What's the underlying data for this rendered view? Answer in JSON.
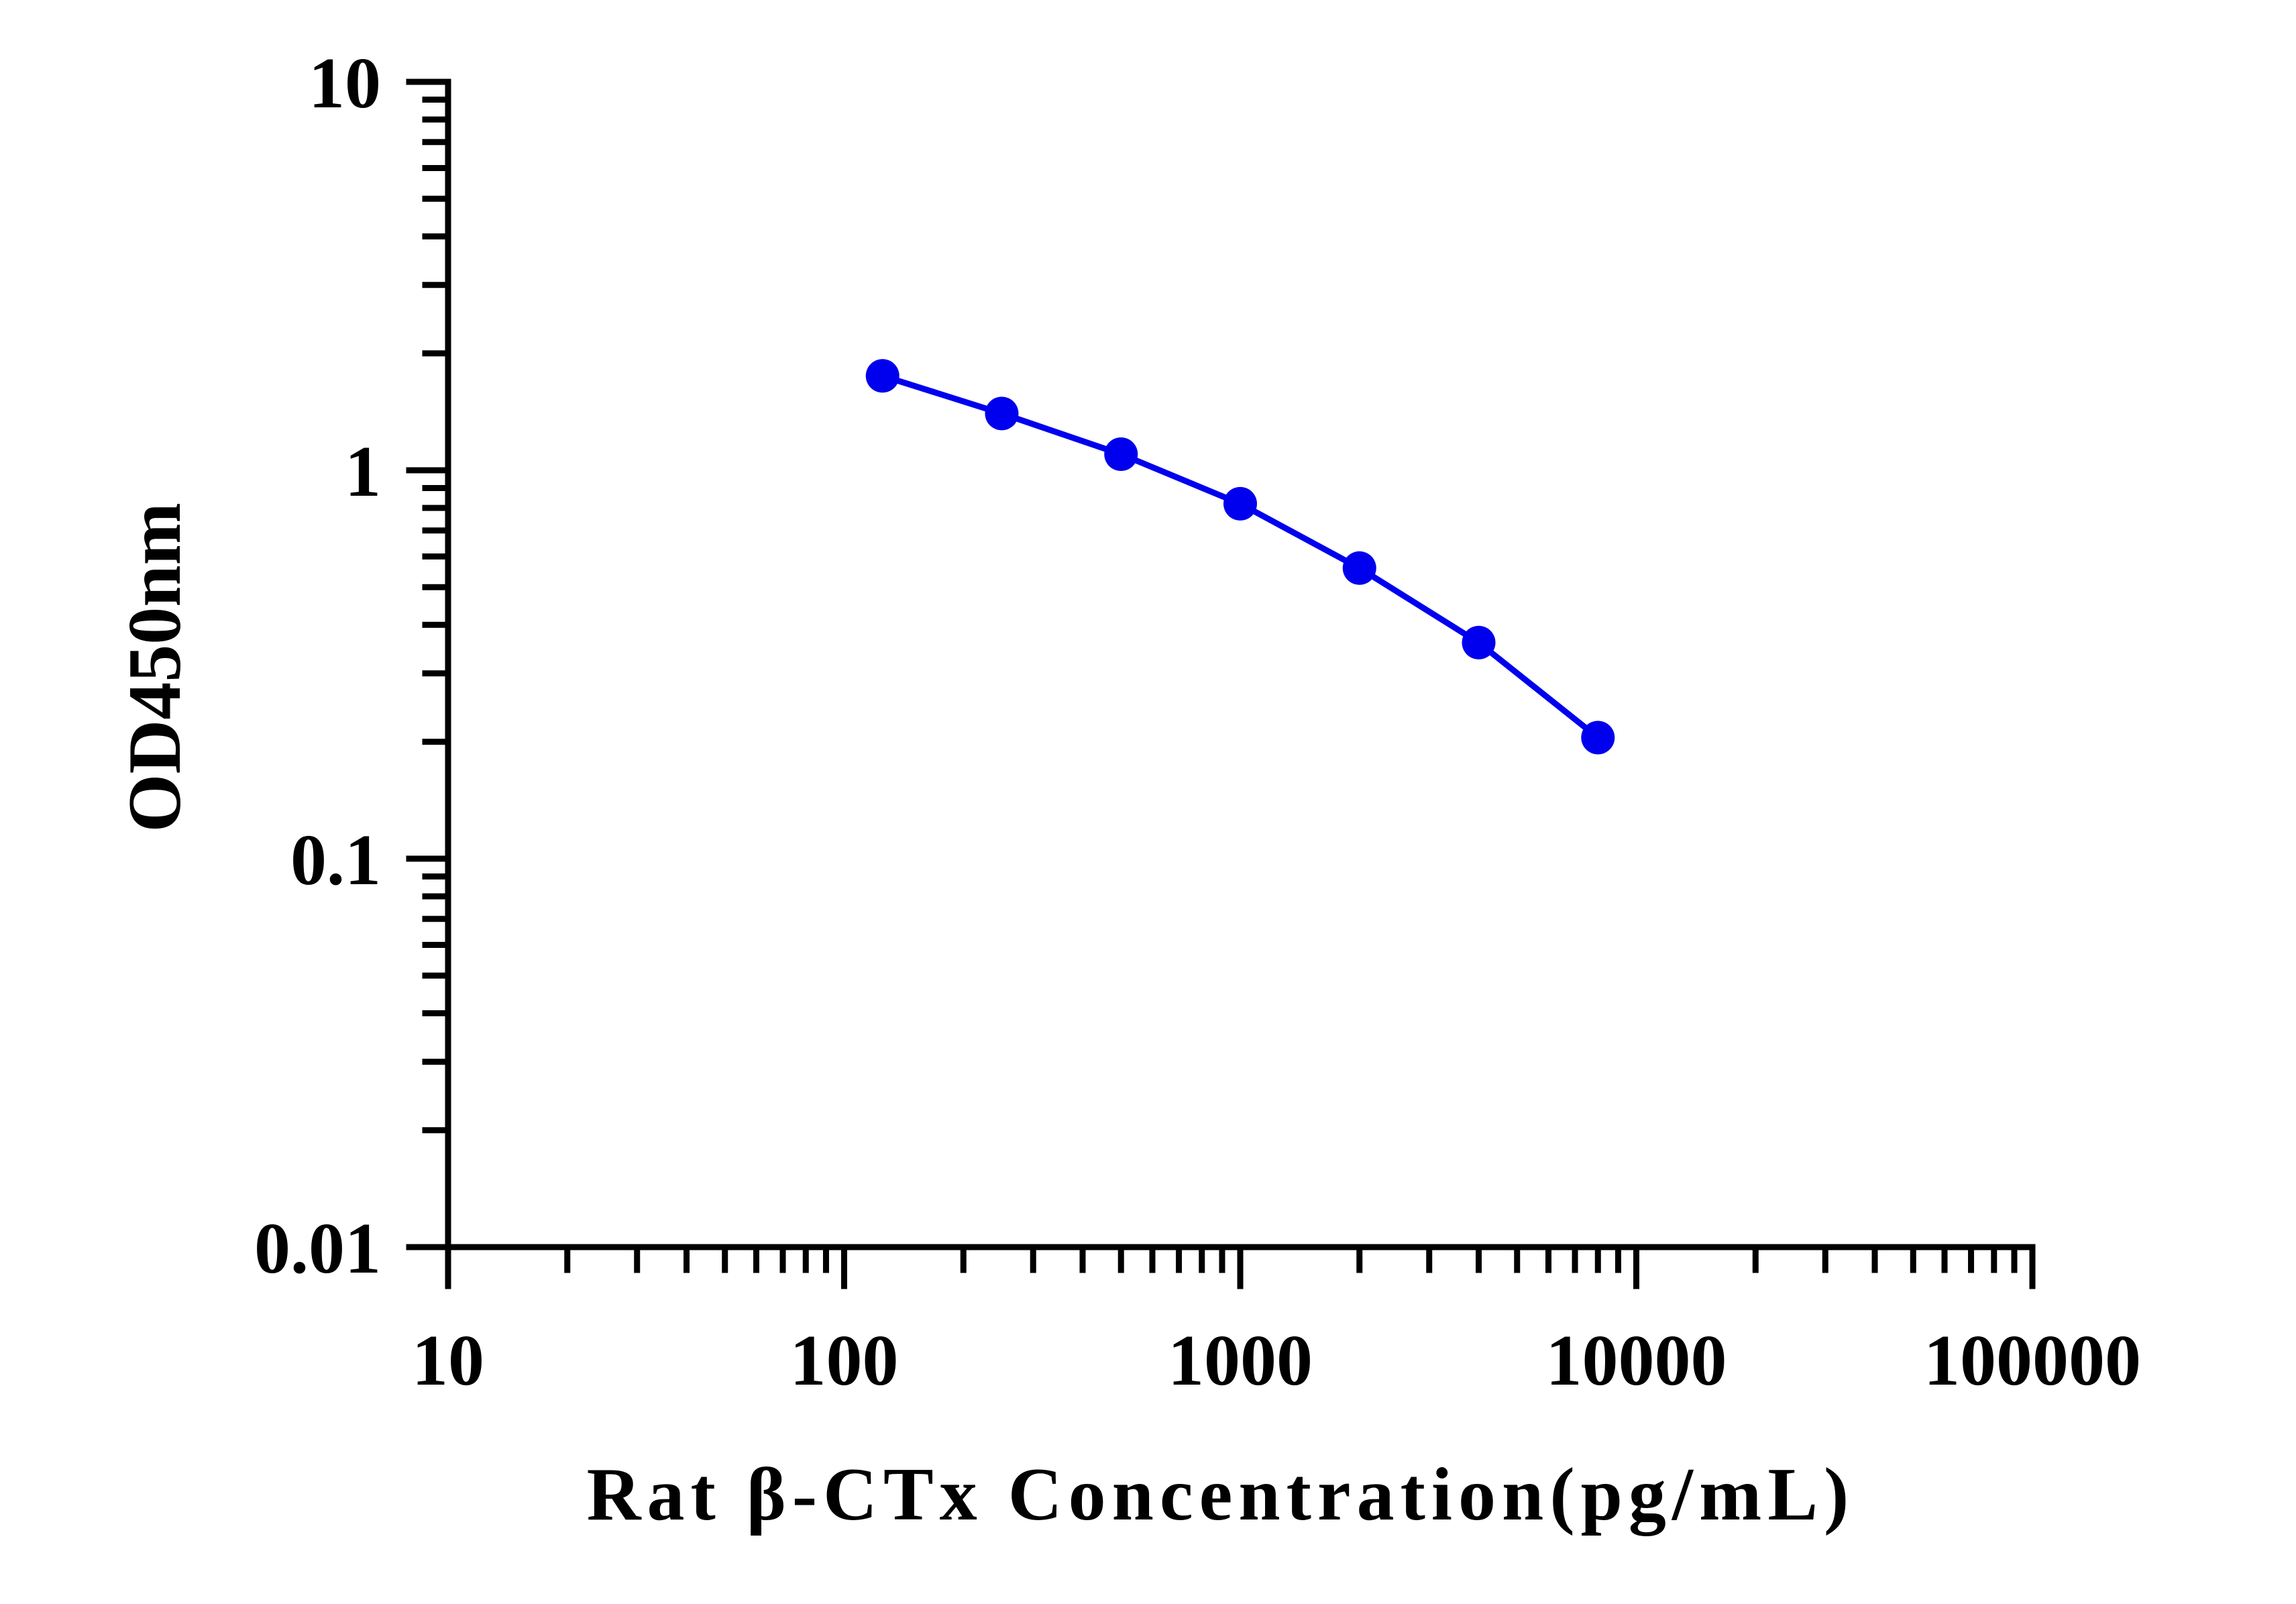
{
  "chart_data": {
    "type": "line",
    "title": "",
    "xlabel": "Rat β-CTx Concentration(pg/mL)",
    "ylabel": "OD450nm",
    "x_scale": "log",
    "y_scale": "log",
    "xlim": [
      10,
      100000
    ],
    "ylim": [
      0.01,
      10
    ],
    "x_tick_labels": [
      "10",
      "100",
      "1000",
      "10000",
      "100000"
    ],
    "y_tick_labels": [
      "0.01",
      "0.1",
      "1",
      "10"
    ],
    "grid": false,
    "legend": "none",
    "series": [
      {
        "color": "#0000ee",
        "marker": "circle",
        "x": [
          125,
          250,
          500,
          1000,
          2000,
          4000,
          8000
        ],
        "y": [
          1.75,
          1.4,
          1.1,
          0.82,
          0.56,
          0.36,
          0.205
        ]
      }
    ]
  }
}
